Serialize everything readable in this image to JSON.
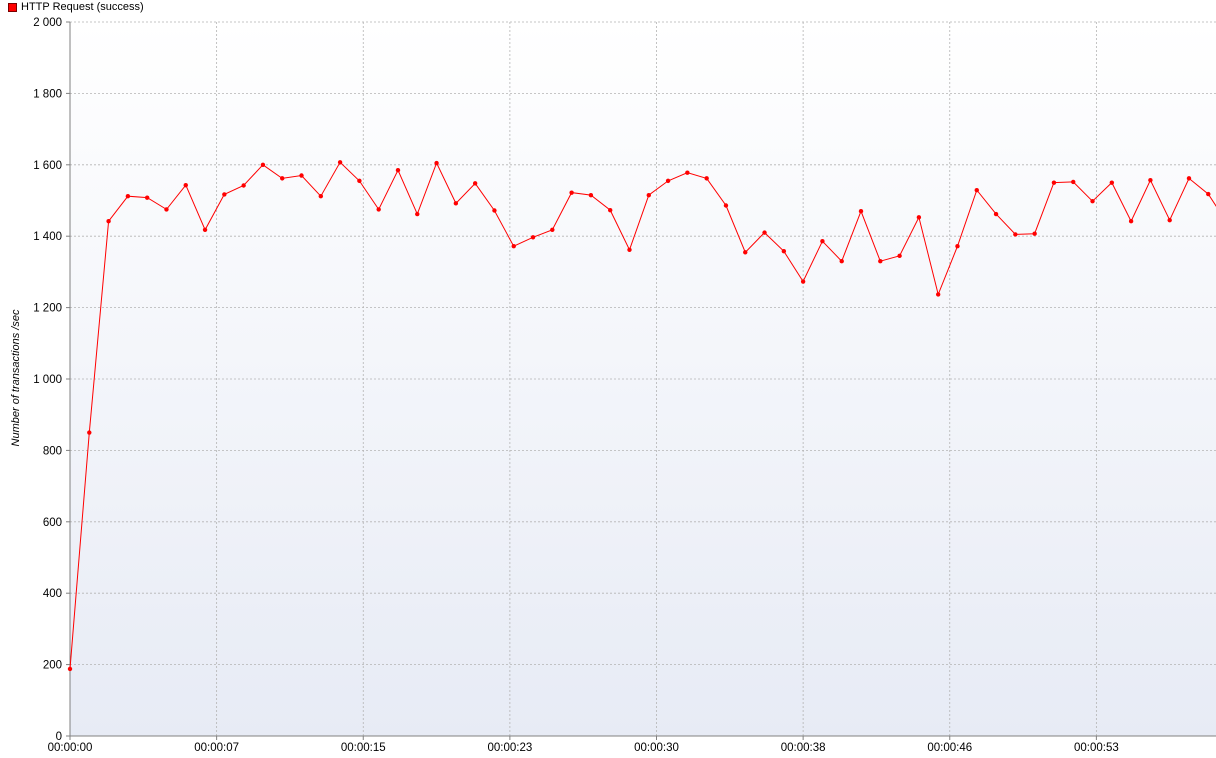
{
  "legend": {
    "label": "HTTP Request (success)",
    "color": "#ff0000"
  },
  "chart_data": {
    "type": "line",
    "title": "",
    "xlabel": "",
    "ylabel": "Number of transactions /sec",
    "ylim": [
      0,
      2000
    ],
    "y_ticks": [
      "0",
      "200",
      "400",
      "600",
      "800",
      "1 000",
      "1 200",
      "1 400",
      "1 600",
      "1 800",
      "2 000"
    ],
    "y_tick_values": [
      0,
      200,
      400,
      600,
      800,
      1000,
      1200,
      1400,
      1600,
      1800,
      2000
    ],
    "x_ticks": [
      "00:00:00",
      "00:00:07",
      "00:00:15",
      "00:00:23",
      "00:00:30",
      "00:00:38",
      "00:00:46",
      "00:00:53"
    ],
    "x_tick_seconds": [
      0,
      7.6,
      15.2,
      22.8,
      30.4,
      38.0,
      45.6,
      53.2
    ],
    "xlim_seconds": [
      0,
      59.4
    ],
    "grid": true,
    "legend_position": "top-left",
    "series": [
      {
        "name": "HTTP Request (success)",
        "color": "#ff0000",
        "x_seconds": [
          0,
          1,
          2,
          3,
          4,
          5,
          6,
          7,
          8,
          9,
          10,
          11,
          12,
          13,
          14,
          15,
          16,
          17,
          18,
          19,
          20,
          21,
          22,
          23,
          24,
          25,
          26,
          27,
          28,
          29,
          30,
          31,
          32,
          33,
          34,
          35,
          36,
          37,
          38,
          39,
          40,
          41,
          42,
          43,
          44,
          45,
          46,
          47,
          48,
          49,
          50,
          51,
          52,
          53,
          54,
          55,
          56,
          57,
          58,
          59,
          60
        ],
        "values": [
          188,
          850,
          1442,
          1512,
          1508,
          1475,
          1543,
          1418,
          1517,
          1542,
          1600,
          1562,
          1570,
          1512,
          1607,
          1555,
          1475,
          1585,
          1462,
          1605,
          1492,
          1548,
          1472,
          1372,
          1397,
          1418,
          1522,
          1515,
          1473,
          1362,
          1515,
          1555,
          1578,
          1562,
          1486,
          1355,
          1410,
          1358,
          1273,
          1386,
          1330,
          1470,
          1330,
          1345,
          1453,
          1237,
          1372,
          1529,
          1462,
          1405,
          1407,
          1550,
          1552,
          1498,
          1550,
          1442,
          1557,
          1445,
          1562,
          1518,
          1435
        ]
      }
    ]
  }
}
